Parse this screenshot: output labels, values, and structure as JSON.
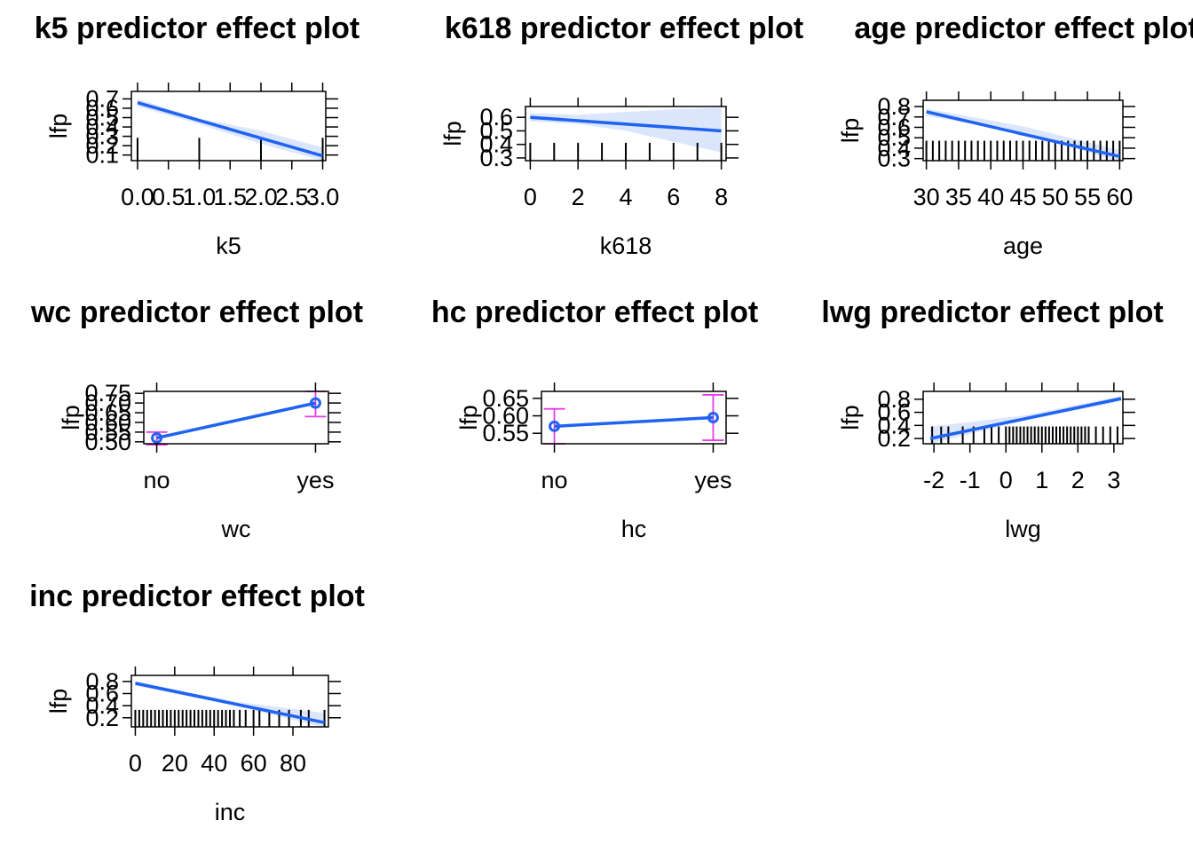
{
  "colors": {
    "line": "#1f63f0",
    "band": "#dbe6fd",
    "errorbar": "#e83be8",
    "frame": "#000000",
    "rug": "#000000"
  },
  "chart_data": [
    {
      "type": "line",
      "title": "k5 predictor effect plot",
      "xlabel": "k5",
      "ylabel": "lfp",
      "xlim": [
        -0.1,
        3.05
      ],
      "ylim": [
        0.04,
        0.78
      ],
      "xticks": [
        "0.0",
        "0.5",
        "1.0",
        "1.5",
        "2.0",
        "2.5",
        "3.0"
      ],
      "yticks": [
        "0.1",
        "0.2",
        "0.3",
        "0.4",
        "0.5",
        "0.6",
        "0.7"
      ],
      "series": [
        {
          "x": [
            0,
            3
          ],
          "y": [
            0.66,
            0.09
          ]
        }
      ],
      "ci": {
        "x": [
          0,
          1,
          2,
          3
        ],
        "lower": [
          0.62,
          0.43,
          0.22,
          0.04
        ],
        "upper": [
          0.7,
          0.49,
          0.36,
          0.18
        ]
      },
      "rug": [
        0.0,
        1.0,
        2.0,
        3.0
      ]
    },
    {
      "type": "line",
      "title": "k618 predictor effect plot",
      "xlabel": "k618",
      "ylabel": "lfp",
      "xlim": [
        -0.2,
        8.2
      ],
      "ylim": [
        0.28,
        0.68
      ],
      "xticks": [
        "0",
        "2",
        "4",
        "6",
        "8"
      ],
      "yticks": [
        "0.3",
        "0.4",
        "0.5",
        "0.6"
      ],
      "series": [
        {
          "x": [
            0,
            8
          ],
          "y": [
            0.6,
            0.5
          ]
        }
      ],
      "ci": {
        "x": [
          0,
          2,
          4,
          6,
          8
        ],
        "lower": [
          0.57,
          0.55,
          0.5,
          0.42,
          0.34
        ],
        "upper": [
          0.63,
          0.62,
          0.64,
          0.66,
          0.67
        ]
      },
      "rug": [
        0,
        1,
        2,
        3,
        4,
        5,
        6,
        7,
        8
      ]
    },
    {
      "type": "line",
      "title": "age predictor effect plot",
      "xlabel": "age",
      "ylabel": "lfp",
      "xlim": [
        29.5,
        60.5
      ],
      "ylim": [
        0.28,
        0.86
      ],
      "xticks": [
        "30",
        "35",
        "40",
        "45",
        "50",
        "55",
        "60"
      ],
      "yticks": [
        "0.3",
        "0.4",
        "0.5",
        "0.6",
        "0.7",
        "0.8"
      ],
      "series": [
        {
          "x": [
            30,
            60
          ],
          "y": [
            0.75,
            0.32
          ]
        }
      ],
      "ci": {
        "x": [
          30,
          45,
          60
        ],
        "lower": [
          0.71,
          0.55,
          0.27
        ],
        "upper": [
          0.78,
          0.61,
          0.38
        ]
      },
      "rug": [
        30,
        31,
        32,
        33,
        34,
        35,
        36,
        37,
        38,
        39,
        40,
        41,
        42,
        43,
        44,
        45,
        46,
        47,
        48,
        49,
        50,
        51,
        52,
        53,
        54,
        55,
        56,
        57,
        58,
        59,
        60
      ]
    },
    {
      "type": "scatter",
      "title": "wc predictor effect plot",
      "xlabel": "wc",
      "ylabel": "lfp",
      "ylim": [
        0.49,
        0.76
      ],
      "categories": [
        "no",
        "yes"
      ],
      "yticks": [
        "0.50",
        "0.55",
        "0.60",
        "0.65",
        "0.70",
        "0.75"
      ],
      "series": [
        {
          "values": [
            0.52,
            0.7
          ],
          "lower": [
            0.485,
            0.63
          ],
          "upper": [
            0.55,
            0.76
          ]
        }
      ]
    },
    {
      "type": "scatter",
      "title": "hc predictor effect plot",
      "xlabel": "hc",
      "ylabel": "lfp",
      "ylim": [
        0.52,
        0.67
      ],
      "categories": [
        "no",
        "yes"
      ],
      "yticks": [
        "0.55",
        "0.60",
        "0.65"
      ],
      "series": [
        {
          "values": [
            0.57,
            0.595
          ],
          "lower": [
            0.52,
            0.53
          ],
          "upper": [
            0.62,
            0.66
          ]
        }
      ]
    },
    {
      "type": "line",
      "title": "lwg predictor effect plot",
      "xlabel": "lwg",
      "ylabel": "lfp",
      "xlim": [
        -2.3,
        3.25
      ],
      "ylim": [
        0.12,
        0.92
      ],
      "xticks": [
        "-2",
        "-1",
        "0",
        "1",
        "2",
        "3"
      ],
      "yticks": [
        "0.2",
        "0.4",
        "0.6",
        "0.8"
      ],
      "series": [
        {
          "x": [
            -2.1,
            3.2
          ],
          "y": [
            0.2,
            0.81
          ]
        }
      ],
      "ci": {
        "x": [
          -2.1,
          0.5,
          3.2
        ],
        "lower": [
          0.12,
          0.47,
          0.77
        ],
        "upper": [
          0.38,
          0.55,
          0.85
        ]
      },
      "rug": [
        -2.05,
        -1.8,
        -1.6,
        -1.2,
        -0.9,
        -0.6,
        -0.4,
        -0.2,
        0.0,
        0.1,
        0.2,
        0.3,
        0.4,
        0.5,
        0.6,
        0.7,
        0.8,
        0.9,
        1.0,
        1.1,
        1.2,
        1.3,
        1.4,
        1.5,
        1.6,
        1.7,
        1.8,
        1.9,
        2.0,
        2.1,
        2.2,
        2.3,
        2.5,
        2.7,
        2.9,
        3.1
      ]
    },
    {
      "type": "line",
      "title": "inc predictor effect plot",
      "xlabel": "inc",
      "ylabel": "lfp",
      "xlim": [
        -2,
        98
      ],
      "ylim": [
        0.05,
        0.9
      ],
      "xticks": [
        "0",
        "20",
        "40",
        "60",
        "80"
      ],
      "yticks": [
        "0.2",
        "0.4",
        "0.6",
        "0.8"
      ],
      "series": [
        {
          "x": [
            0,
            96
          ],
          "y": [
            0.77,
            0.12
          ]
        }
      ],
      "ci": {
        "x": [
          0,
          48,
          96
        ],
        "lower": [
          0.73,
          0.42,
          0.04
        ],
        "upper": [
          0.8,
          0.48,
          0.28
        ]
      },
      "rug": [
        0,
        2,
        4,
        6,
        8,
        10,
        12,
        14,
        16,
        18,
        20,
        22,
        24,
        26,
        28,
        30,
        32,
        34,
        36,
        38,
        40,
        42,
        44,
        46,
        48,
        50,
        53,
        56,
        60,
        63,
        68,
        73,
        78,
        84,
        88,
        96
      ]
    }
  ]
}
